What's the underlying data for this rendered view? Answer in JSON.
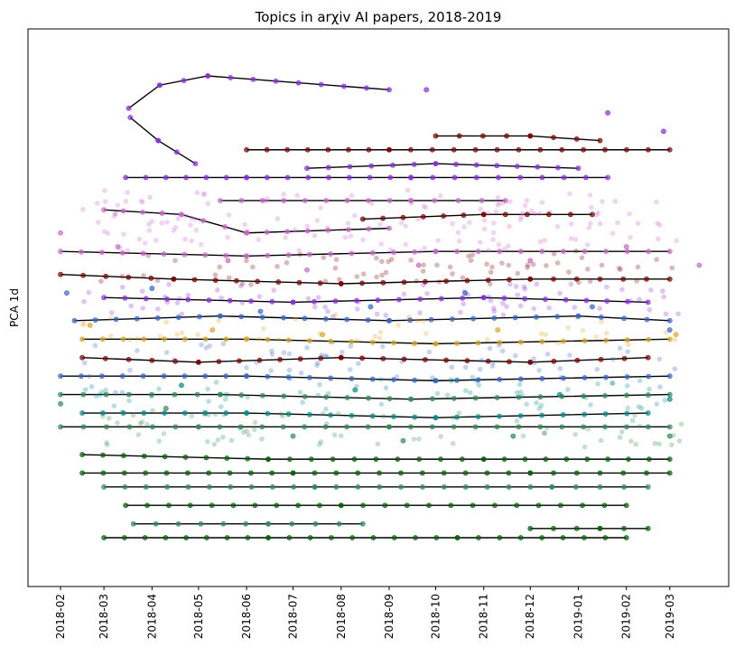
{
  "chart_data": {
    "type": "scatter",
    "title": "Topics in arχiv AI papers, 2018-2019",
    "xlabel": "",
    "ylabel": "PCA 1d",
    "x_tick_labels": [
      "2018-02",
      "2018-03",
      "2018-04",
      "2018-05",
      "2018-06",
      "2018-07",
      "2018-08",
      "2018-09",
      "2018-10",
      "2018-11",
      "2018-12",
      "2019-01",
      "2019-02",
      "2019-03"
    ],
    "xlim": [
      "2018-01-11",
      "2019-04-08"
    ],
    "y_ticks_visible": false,
    "grid": false,
    "legend": "none",
    "series_colors": [
      "#8a2be2",
      "#800000",
      "#cc66cc",
      "#3366cc",
      "#daa520",
      "#2e8b57",
      "#006400",
      "#008b8b"
    ],
    "trajectories": [
      {
        "color": "#8a2be2",
        "points": [
          [
            "2018-03-17",
            0.93
          ],
          [
            "2018-04-06",
            0.98
          ],
          [
            "2018-05-07",
            1.0
          ],
          [
            "2018-09-01",
            0.97
          ]
        ]
      },
      {
        "color": "#8a2be2",
        "points": [
          [
            "2018-03-18",
            0.91
          ],
          [
            "2018-04-05",
            0.86
          ],
          [
            "2018-04-29",
            0.81
          ]
        ]
      },
      {
        "color": "#8a2be2",
        "points": [
          [
            "2018-03-15",
            0.78
          ],
          [
            "2018-06-01",
            0.78
          ],
          [
            "2018-09-15",
            0.78
          ],
          [
            "2019-01-20",
            0.78
          ]
        ]
      },
      {
        "color": "#800000",
        "points": [
          [
            "2018-06-01",
            0.84
          ],
          [
            "2018-09-01",
            0.84
          ],
          [
            "2019-03-01",
            0.84
          ]
        ]
      },
      {
        "color": "#800000",
        "points": [
          [
            "2018-10-01",
            0.87
          ],
          [
            "2018-12-01",
            0.87
          ],
          [
            "2019-01-15",
            0.86
          ]
        ]
      },
      {
        "color": "#8a2be2",
        "points": [
          [
            "2018-07-10",
            0.8
          ],
          [
            "2018-10-01",
            0.81
          ],
          [
            "2019-01-01",
            0.8
          ]
        ]
      },
      {
        "color": "#cc66cc",
        "points": [
          [
            "2018-03-01",
            0.71
          ],
          [
            "2018-04-20",
            0.7
          ],
          [
            "2018-06-01",
            0.66
          ],
          [
            "2018-09-01",
            0.67
          ]
        ]
      },
      {
        "color": "#cc66cc",
        "points": [
          [
            "2018-05-15",
            0.73
          ],
          [
            "2018-09-15",
            0.73
          ],
          [
            "2018-11-15",
            0.73
          ]
        ]
      },
      {
        "color": "#800000",
        "points": [
          [
            "2018-08-15",
            0.69
          ],
          [
            "2018-11-01",
            0.7
          ],
          [
            "2019-01-10",
            0.7
          ]
        ]
      },
      {
        "color": "#cc66cc",
        "points": [
          [
            "2018-02-01",
            0.62
          ],
          [
            "2018-06-01",
            0.61
          ],
          [
            "2018-10-01",
            0.62
          ],
          [
            "2019-03-01",
            0.62
          ]
        ]
      },
      {
        "color": "#800000",
        "points": [
          [
            "2018-02-01",
            0.57
          ],
          [
            "2018-04-15",
            0.56
          ],
          [
            "2018-08-01",
            0.55
          ],
          [
            "2018-12-01",
            0.56
          ],
          [
            "2019-03-01",
            0.56
          ]
        ]
      },
      {
        "color": "#8a2be2",
        "points": [
          [
            "2018-03-01",
            0.52
          ],
          [
            "2018-07-01",
            0.51
          ],
          [
            "2018-11-01",
            0.52
          ],
          [
            "2019-02-15",
            0.51
          ]
        ]
      },
      {
        "color": "#3366cc",
        "points": [
          [
            "2018-02-10",
            0.47
          ],
          [
            "2018-05-15",
            0.48
          ],
          [
            "2018-09-01",
            0.47
          ],
          [
            "2019-01-01",
            0.48
          ],
          [
            "2019-03-01",
            0.47
          ]
        ]
      },
      {
        "color": "#daa520",
        "points": [
          [
            "2018-02-15",
            0.43
          ],
          [
            "2018-06-01",
            0.43
          ],
          [
            "2018-10-01",
            0.42
          ],
          [
            "2019-03-01",
            0.43
          ]
        ]
      },
      {
        "color": "#800000",
        "points": [
          [
            "2018-02-15",
            0.39
          ],
          [
            "2018-05-01",
            0.38
          ],
          [
            "2018-08-01",
            0.39
          ],
          [
            "2018-12-01",
            0.38
          ],
          [
            "2019-02-15",
            0.39
          ]
        ]
      },
      {
        "color": "#3366cc",
        "points": [
          [
            "2018-02-01",
            0.35
          ],
          [
            "2018-06-01",
            0.35
          ],
          [
            "2018-10-01",
            0.34
          ],
          [
            "2019-03-01",
            0.35
          ]
        ]
      },
      {
        "color": "#2e8b57",
        "points": [
          [
            "2018-02-01",
            0.31
          ],
          [
            "2018-05-15",
            0.31
          ],
          [
            "2018-09-15",
            0.3
          ],
          [
            "2019-03-01",
            0.31
          ]
        ]
      },
      {
        "color": "#008b8b",
        "points": [
          [
            "2018-02-15",
            0.27
          ],
          [
            "2018-06-01",
            0.27
          ],
          [
            "2018-10-01",
            0.26
          ],
          [
            "2019-02-15",
            0.27
          ]
        ]
      },
      {
        "color": "#2e8b57",
        "points": [
          [
            "2018-02-01",
            0.24
          ],
          [
            "2018-05-01",
            0.24
          ],
          [
            "2018-09-01",
            0.24
          ],
          [
            "2019-03-01",
            0.24
          ]
        ]
      },
      {
        "color": "#006400",
        "points": [
          [
            "2018-02-15",
            0.18
          ],
          [
            "2018-06-15",
            0.17
          ],
          [
            "2018-11-01",
            0.17
          ],
          [
            "2019-03-01",
            0.17
          ]
        ]
      },
      {
        "color": "#006400",
        "points": [
          [
            "2018-02-15",
            0.14
          ],
          [
            "2018-07-01",
            0.14
          ],
          [
            "2018-12-01",
            0.14
          ],
          [
            "2019-03-01",
            0.14
          ]
        ]
      },
      {
        "color": "#2e8b57",
        "points": [
          [
            "2018-03-01",
            0.11
          ],
          [
            "2018-07-15",
            0.11
          ],
          [
            "2018-12-15",
            0.11
          ],
          [
            "2019-02-15",
            0.11
          ]
        ]
      },
      {
        "color": "#006400",
        "points": [
          [
            "2018-03-15",
            0.07
          ],
          [
            "2018-08-01",
            0.07
          ],
          [
            "2019-02-01",
            0.07
          ]
        ]
      },
      {
        "color": "#2e8b57",
        "points": [
          [
            "2018-03-20",
            0.03
          ],
          [
            "2018-06-15",
            0.03
          ],
          [
            "2018-08-15",
            0.03
          ]
        ]
      },
      {
        "color": "#006400",
        "points": [
          [
            "2018-12-01",
            0.02
          ],
          [
            "2019-01-15",
            0.02
          ],
          [
            "2019-02-15",
            0.02
          ]
        ]
      },
      {
        "color": "#006400",
        "points": [
          [
            "2018-03-01",
            0.0
          ],
          [
            "2018-06-15",
            0.0
          ],
          [
            "2018-10-15",
            0.0
          ],
          [
            "2019-02-01",
            0.0
          ]
        ]
      }
    ],
    "scatter_points": [
      {
        "color": "#cc66cc",
        "points": [
          [
            "2018-02-01",
            0.66
          ],
          [
            "2018-03-10",
            0.63
          ],
          [
            "2018-05-20",
            0.6
          ],
          [
            "2018-07-10",
            0.58
          ],
          [
            "2018-09-20",
            0.59
          ],
          [
            "2018-12-01",
            0.6
          ],
          [
            "2019-02-01",
            0.63
          ],
          [
            "2019-03-20",
            0.59
          ]
        ]
      },
      {
        "color": "#3366cc",
        "points": [
          [
            "2018-02-05",
            0.53
          ],
          [
            "2018-04-01",
            0.54
          ],
          [
            "2018-06-10",
            0.49
          ],
          [
            "2018-08-20",
            0.5
          ],
          [
            "2018-10-20",
            0.53
          ],
          [
            "2019-01-10",
            0.5
          ],
          [
            "2019-03-01",
            0.45
          ]
        ]
      },
      {
        "color": "#daa520",
        "points": [
          [
            "2018-02-20",
            0.46
          ],
          [
            "2018-05-10",
            0.45
          ],
          [
            "2018-07-20",
            0.44
          ],
          [
            "2018-11-10",
            0.45
          ],
          [
            "2019-03-05",
            0.44
          ]
        ]
      },
      {
        "color": "#2e8b57",
        "points": [
          [
            "2018-02-01",
            0.29
          ],
          [
            "2018-04-10",
            0.28
          ],
          [
            "2018-07-01",
            0.22
          ],
          [
            "2018-09-10",
            0.21
          ],
          [
            "2018-11-20",
            0.22
          ],
          [
            "2019-03-01",
            0.22
          ]
        ]
      },
      {
        "color": "#008b8b",
        "points": [
          [
            "2018-04-20",
            0.33
          ],
          [
            "2018-08-10",
            0.32
          ],
          [
            "2018-12-20",
            0.31
          ],
          [
            "2019-03-01",
            0.3
          ]
        ]
      },
      {
        "color": "#8a2be2",
        "points": [
          [
            "2019-01-20",
            0.92
          ],
          [
            "2019-02-25",
            0.88
          ],
          [
            "2018-09-25",
            0.97
          ]
        ]
      }
    ]
  }
}
